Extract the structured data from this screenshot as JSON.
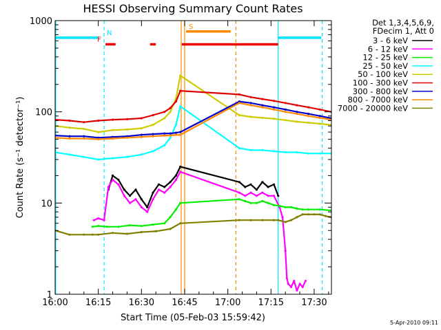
{
  "chart_data": {
    "type": "line",
    "title": "HESSI Observing Summary Count Rates",
    "xlabel": "Start Time (05-Feb-03 15:59:42)",
    "ylabel": "Count Rate (s⁻¹ detector⁻¹)",
    "timestamp": "5-Apr-2010 09:11",
    "y_scale": "log",
    "ylim": [
      1,
      1000
    ],
    "xlim_minutes": [
      0,
      96
    ],
    "x_ticks": [
      {
        "value": 0,
        "label": "16:00"
      },
      {
        "value": 15,
        "label": "16:15"
      },
      {
        "value": 30,
        "label": "16:30"
      },
      {
        "value": 45,
        "label": "16:45"
      },
      {
        "value": 60,
        "label": "17:00"
      },
      {
        "value": 75,
        "label": "17:15"
      },
      {
        "value": 90,
        "label": "17:30"
      }
    ],
    "y_ticks": [
      {
        "value": 1,
        "label": "1"
      },
      {
        "value": 10,
        "label": "10"
      },
      {
        "value": 100,
        "label": "100"
      },
      {
        "value": 1000,
        "label": "1000"
      }
    ],
    "legend_header": [
      "Det 1,3,4,5,6,9,",
      "FDecim 1, Att 0"
    ],
    "series": [
      {
        "name": "3 - 6 keV",
        "color": "#000000",
        "x": [
          18.5,
          20,
          22,
          24,
          26,
          28,
          30,
          32,
          34,
          36,
          38,
          40,
          42,
          43.5,
          64,
          66,
          68,
          70,
          72,
          74,
          76,
          77.5
        ],
        "y": [
          14,
          20,
          18,
          14,
          12,
          14,
          11,
          9,
          13,
          16,
          15,
          17,
          20,
          25,
          17,
          15,
          16,
          14,
          17,
          15,
          16,
          12
        ]
      },
      {
        "name": "6 - 12 keV",
        "color": "#ff00ff",
        "x": [
          13.5,
          15,
          17,
          18.5,
          20,
          22,
          24,
          26,
          28,
          30,
          32,
          34,
          36,
          38,
          40,
          42,
          43.5,
          64,
          66,
          68,
          70,
          72,
          74,
          76,
          78,
          79,
          80,
          80.5,
          81,
          82,
          83,
          84,
          85,
          86,
          87
        ],
        "y": [
          6.5,
          6.8,
          6.5,
          15,
          18,
          16,
          12,
          10,
          11,
          9,
          8,
          11,
          14,
          13,
          15,
          18,
          22,
          13,
          12,
          13,
          12,
          13,
          12,
          12,
          9,
          7,
          3,
          1.5,
          1.3,
          1.2,
          1.4,
          1.1,
          1.3,
          1.2,
          1.4
        ]
      },
      {
        "name": "12 - 25 keV",
        "color": "#00ee00",
        "x": [
          13,
          15,
          18,
          22,
          26,
          30,
          34,
          38,
          40,
          42,
          43.5,
          64,
          66,
          68,
          70,
          72,
          74,
          76,
          78,
          80,
          82,
          84,
          86,
          88,
          92,
          96
        ],
        "y": [
          5.5,
          5.6,
          5.5,
          5.5,
          5.7,
          5.6,
          5.8,
          6,
          7,
          8.5,
          10,
          11,
          10.5,
          10,
          10,
          10.5,
          10,
          9.5,
          9.3,
          9,
          9,
          8.7,
          8.5,
          8.5,
          8.5,
          8.3
        ]
      },
      {
        "name": "25 - 50 keV",
        "color": "#00ffff",
        "x": [
          0,
          5,
          10,
          15,
          20,
          25,
          30,
          34,
          38,
          40,
          42,
          43.5,
          64,
          68,
          72,
          76,
          80,
          84,
          88,
          92,
          96
        ],
        "y": [
          36,
          34,
          32,
          30,
          31,
          32,
          34,
          37,
          43,
          52,
          72,
          115,
          40,
          38,
          38,
          37,
          36,
          36,
          35,
          35,
          35
        ]
      },
      {
        "name": "50 - 100 keV",
        "color": "#cccc00",
        "x": [
          0,
          5,
          10,
          15,
          20,
          25,
          30,
          34,
          38,
          40,
          42,
          43.5,
          64,
          68,
          72,
          76,
          80,
          84,
          88,
          92,
          96
        ],
        "y": [
          70,
          67,
          65,
          60,
          63,
          64,
          66,
          72,
          85,
          100,
          140,
          250,
          92,
          88,
          86,
          84,
          81,
          78,
          76,
          74,
          72
        ]
      },
      {
        "name": "100 - 300 keV",
        "color": "#e00000",
        "x": [
          0,
          5,
          10,
          15,
          20,
          25,
          30,
          34,
          38,
          40,
          42,
          43.5,
          64,
          68,
          72,
          76,
          80,
          84,
          88,
          92,
          96
        ],
        "y": [
          82,
          80,
          77,
          80,
          82,
          83,
          85,
          92,
          100,
          110,
          130,
          170,
          155,
          145,
          138,
          132,
          125,
          118,
          112,
          106,
          100
        ]
      },
      {
        "name": "300 - 800 keV",
        "color": "#0000cc",
        "x": [
          0,
          5,
          10,
          15,
          20,
          25,
          30,
          34,
          38,
          40,
          42,
          43.5,
          64,
          68,
          72,
          76,
          80,
          84,
          88,
          92,
          96
        ],
        "y": [
          55,
          54,
          54,
          52,
          53,
          54,
          56,
          57,
          58,
          58,
          59,
          60,
          130,
          125,
          118,
          112,
          106,
          100,
          95,
          90,
          85
        ]
      },
      {
        "name": "800 - 7000 keV",
        "color": "#ff8800",
        "x": [
          0,
          5,
          10,
          15,
          20,
          25,
          30,
          34,
          38,
          40,
          42,
          43.5,
          64,
          68,
          72,
          76,
          80,
          84,
          88,
          92,
          96
        ],
        "y": [
          52,
          51,
          51,
          50,
          51,
          52,
          53,
          54,
          55,
          55,
          56,
          56,
          125,
          118,
          112,
          106,
          100,
          95,
          90,
          86,
          82
        ]
      },
      {
        "name": "7000 - 20000 keV",
        "color": "#808000",
        "x": [
          0,
          5,
          10,
          13,
          15,
          20,
          25,
          30,
          35,
          40,
          43.5,
          64,
          68,
          72,
          76,
          77.5,
          80,
          82,
          84,
          86,
          88,
          90,
          92,
          94,
          96
        ],
        "y": [
          5,
          4.5,
          4.5,
          4.5,
          4.5,
          4.7,
          4.6,
          4.8,
          4.9,
          5.2,
          6,
          6.5,
          6.5,
          6.5,
          6.5,
          6.5,
          6.2,
          6.5,
          7,
          7.5,
          7.5,
          7.5,
          7.5,
          7.2,
          7
        ]
      }
    ],
    "flags": [
      {
        "name": "N",
        "color": "#00e5ff",
        "level": 650,
        "segments": [
          [
            0,
            15
          ],
          [
            77.5,
            92.5
          ]
        ]
      },
      {
        "name": "F",
        "color": "#ee0000",
        "level": 550,
        "segments": [
          [
            17.5,
            21
          ],
          [
            33,
            35
          ],
          [
            44,
            77.5
          ]
        ]
      },
      {
        "name": "S",
        "color": "#ff8800",
        "level": 760,
        "segments": [
          [
            45.5,
            61
          ]
        ]
      }
    ],
    "vertical_lines": [
      {
        "color": "#00e5ff",
        "x": 0.2,
        "style": "solid"
      },
      {
        "color": "#00e5ff",
        "x": 17,
        "style": "dashed"
      },
      {
        "color": "#ff8800",
        "x": 43.8,
        "style": "solid"
      },
      {
        "color": "#ff8800",
        "x": 45,
        "style": "solid"
      },
      {
        "color": "#ff8800",
        "x": 62.8,
        "style": "dashed"
      },
      {
        "color": "#00e5ff",
        "x": 77.5,
        "style": "solid"
      },
      {
        "color": "#00e5ff",
        "x": 92.8,
        "style": "dashed"
      }
    ]
  }
}
